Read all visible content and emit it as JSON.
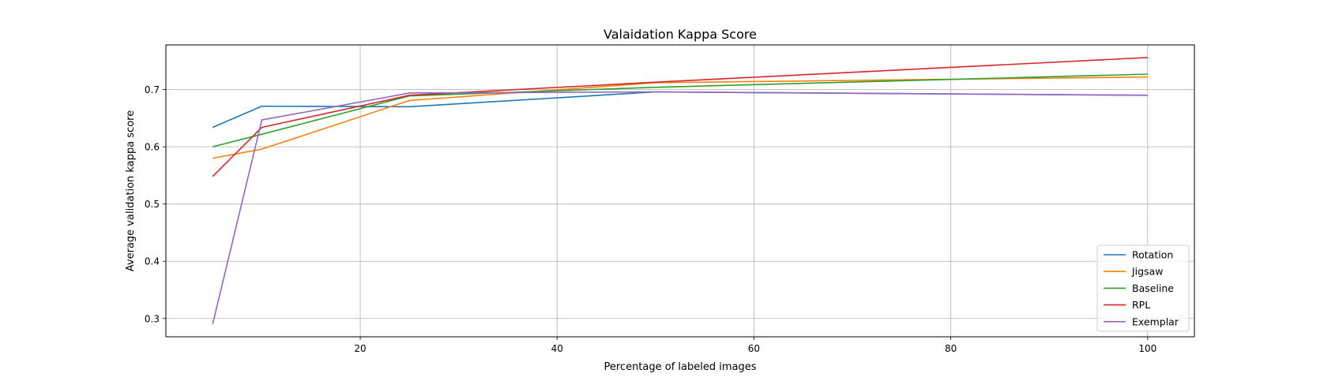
{
  "chart_data": {
    "type": "line",
    "title": "Valaidation Kappa Score",
    "xlabel": "Percentage of labeled images",
    "ylabel": "Average validation kappa score",
    "x": [
      5,
      10,
      25,
      50,
      100
    ],
    "xlim": [
      0.25,
      104.75
    ],
    "ylim": [
      0.268,
      0.778
    ],
    "xticks": [
      20,
      40,
      60,
      80,
      100
    ],
    "yticks": [
      0.3,
      0.4,
      0.5,
      0.6,
      0.7
    ],
    "ytick_labels": [
      "0.3",
      "0.4",
      "0.5",
      "0.6",
      "0.7"
    ],
    "grid": true,
    "legend_position": "lower-right",
    "series": [
      {
        "name": "Rotation",
        "color": "#1f77b4",
        "values": [
          0.634,
          0.671,
          0.67,
          0.696,
          0.69
        ]
      },
      {
        "name": "Jigsaw",
        "color": "#ff7f0e",
        "values": [
          0.58,
          0.596,
          0.681,
          0.712,
          0.722
        ]
      },
      {
        "name": "Baseline",
        "color": "#2ca02c",
        "values": [
          0.6,
          0.622,
          0.689,
          0.704,
          0.727
        ]
      },
      {
        "name": "RPL",
        "color": "#d62728",
        "values": [
          0.548,
          0.634,
          0.69,
          0.713,
          0.756
        ]
      },
      {
        "name": "Exemplar",
        "color": "#9467bd",
        "values": [
          0.29,
          0.647,
          0.694,
          0.696,
          0.69
        ]
      }
    ]
  }
}
